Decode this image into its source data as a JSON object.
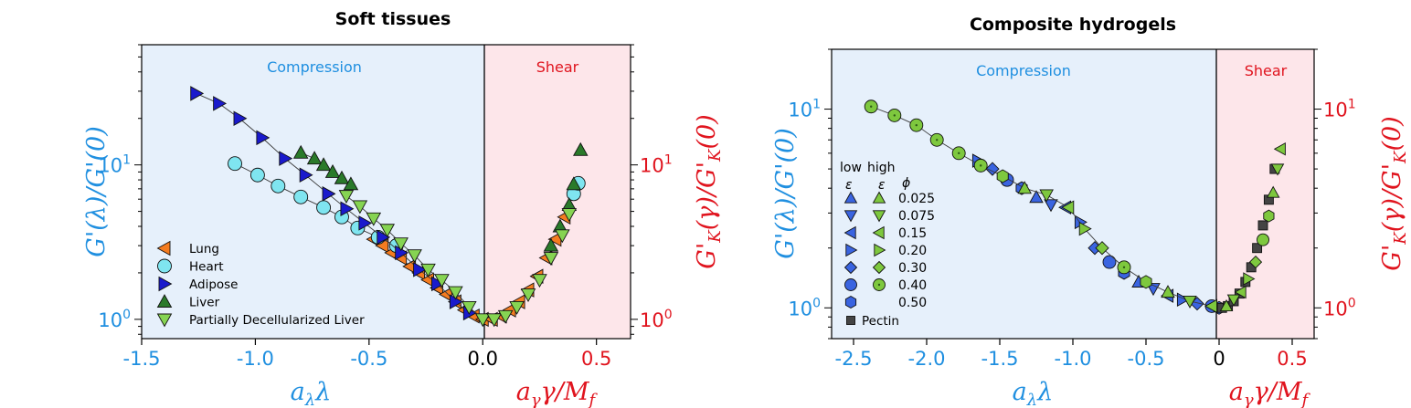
{
  "chart_data": [
    {
      "type": "scatter",
      "title": "Soft tissues",
      "xlabel": "a_λ λ",
      "xlabel_right": "a_γ γ/M_f",
      "ylabel_left": "G'(λ)/G'(0)",
      "ylabel_right": "G'_K(γ)/G'_K(0)",
      "xlim": [
        -1.5,
        0.65
      ],
      "ylim": [
        0.75,
        60
      ],
      "yscale": "log",
      "x_ticks": [
        "-1.5",
        "-1.0",
        "-0.5",
        "0.0",
        "0.5"
      ],
      "y_ticks_left": [
        "10^0",
        "10^1"
      ],
      "y_ticks_right": [
        "10^0",
        "10^1"
      ],
      "regions": [
        {
          "label": "Compression",
          "x": [
            -1.5,
            0.0
          ],
          "color": "#e6f0fb",
          "text_color": "#1f8fe0"
        },
        {
          "label": "Shear",
          "x": [
            0.0,
            0.65
          ],
          "color": "#fde6ea",
          "text_color": "#e0141e"
        }
      ],
      "legend_position": "lower-left",
      "series": [
        {
          "name": "Lung",
          "marker": "triangle-left",
          "color": "#f47c20",
          "x": [
            -0.48,
            -0.44,
            -0.4,
            -0.36,
            -0.32,
            -0.28,
            -0.24,
            -0.2,
            -0.16,
            -0.12,
            -0.08,
            -0.04,
            0.0,
            0.04,
            0.08,
            0.12,
            0.16,
            0.2,
            0.24,
            0.28,
            0.32,
            0.36
          ],
          "y": [
            3.3,
            3.0,
            2.7,
            2.5,
            2.2,
            2.0,
            1.8,
            1.6,
            1.45,
            1.3,
            1.15,
            1.05,
            1.0,
            1.0,
            1.05,
            1.15,
            1.3,
            1.55,
            1.9,
            2.5,
            3.3,
            4.6
          ]
        },
        {
          "name": "Heart",
          "marker": "circle",
          "color": "#7fe5f0",
          "x": [
            -1.09,
            -0.99,
            -0.9,
            -0.8,
            -0.7,
            -0.62,
            -0.55,
            -0.46,
            -0.38,
            0.4,
            0.42
          ],
          "y": [
            10.2,
            8.6,
            7.3,
            6.2,
            5.3,
            4.6,
            3.9,
            3.4,
            3.0,
            6.5,
            7.6
          ]
        },
        {
          "name": "Adipose",
          "marker": "triangle-right",
          "color": "#1a1acc",
          "x": [
            -1.26,
            -1.16,
            -1.07,
            -0.97,
            -0.87,
            -0.78,
            -0.68,
            -0.6,
            -0.52,
            -0.44,
            -0.36,
            -0.28,
            -0.2,
            -0.12,
            -0.06
          ],
          "y": [
            29,
            25,
            20,
            15,
            11,
            8.6,
            6.5,
            5.2,
            4.2,
            3.4,
            2.7,
            2.1,
            1.7,
            1.3,
            1.1
          ]
        },
        {
          "name": "Liver",
          "marker": "triangle-up",
          "color": "#2a7a2a",
          "x": [
            -0.8,
            -0.74,
            -0.7,
            -0.66,
            -0.62,
            -0.58,
            0.3,
            0.34,
            0.38,
            0.4,
            0.43
          ],
          "y": [
            12,
            11,
            10,
            9,
            8.2,
            7.5,
            3.0,
            4.0,
            5.5,
            7.5,
            12.5
          ]
        },
        {
          "name": "Partially Decellularized Liver",
          "marker": "triangle-down",
          "color": "#86d452",
          "x": [
            -0.6,
            -0.54,
            -0.48,
            -0.42,
            -0.36,
            -0.3,
            -0.24,
            -0.18,
            -0.12,
            -0.06,
            0.0,
            0.05,
            0.1,
            0.15,
            0.2,
            0.25,
            0.3,
            0.35,
            0.38
          ],
          "y": [
            6.3,
            5.4,
            4.5,
            3.8,
            3.1,
            2.6,
            2.1,
            1.8,
            1.5,
            1.2,
            1.0,
            1.0,
            1.05,
            1.2,
            1.45,
            1.8,
            2.5,
            3.5,
            4.8
          ]
        }
      ]
    },
    {
      "type": "scatter",
      "title": "Composite hydrogels",
      "xlabel": "a_λ λ",
      "xlabel_right": "a_γ γ/M_f",
      "ylabel_left": "G'(λ)/G'(0)",
      "ylabel_right": "G'_K(γ)/G'_K(0)",
      "xlim": [
        -2.65,
        0.65
      ],
      "ylim": [
        0.7,
        20
      ],
      "yscale": "log",
      "x_ticks": [
        "-2.5",
        "-2.0",
        "-1.5",
        "-1.0",
        "-0.5",
        "0",
        "0.5"
      ],
      "y_ticks_left": [
        "10^0",
        "10^1"
      ],
      "y_ticks_right": [
        "10^0",
        "10^1"
      ],
      "regions": [
        {
          "label": "Compression",
          "x": [
            -2.65,
            0.0
          ],
          "color": "#e6f0fb",
          "text_color": "#1f8fe0"
        },
        {
          "label": "Shear",
          "x": [
            0.0,
            0.65
          ],
          "color": "#fde6ea",
          "text_color": "#e0141e"
        }
      ],
      "legend_position": "lower-left",
      "legend_header": {
        "low": "low",
        "high": "high",
        "eps": "ε",
        "phi": "ϕ"
      },
      "phi_values": [
        "0.025",
        "0.075",
        "0.15",
        "0.20",
        "0.30",
        "0.40",
        "0.50"
      ],
      "pectin_label": "Pectin",
      "series": [
        {
          "name": "low ε",
          "color": "#3a64e0",
          "x": [
            -1.65,
            -1.55,
            -1.45,
            -1.35,
            -1.25,
            -1.15,
            -1.05,
            -0.95,
            -0.85,
            -0.75,
            -0.65,
            -0.55,
            -0.45,
            -0.35,
            -0.25,
            -0.15,
            -0.05,
            0.0
          ],
          "y": [
            5.5,
            5.0,
            4.4,
            4.0,
            3.6,
            3.3,
            3.2,
            2.7,
            2.0,
            1.7,
            1.5,
            1.35,
            1.25,
            1.15,
            1.1,
            1.05,
            1.02,
            1.0
          ]
        },
        {
          "name": "high ε",
          "color": "#7ec83e",
          "x": [
            -2.38,
            -2.22,
            -2.07,
            -1.93,
            -1.78,
            -1.63,
            -1.48,
            -1.33,
            -1.18,
            -1.03,
            -0.92,
            -0.8,
            -0.65,
            -0.5,
            -0.35,
            -0.2,
            -0.05
          ],
          "y": [
            10.3,
            9.3,
            8.3,
            7.0,
            6.0,
            5.2,
            4.6,
            4.0,
            3.7,
            3.2,
            2.5,
            2.0,
            1.6,
            1.35,
            1.2,
            1.08,
            1.02
          ]
        },
        {
          "name": "Pectin",
          "color": "#444444",
          "x": [
            0.02,
            0.06,
            0.1,
            0.14,
            0.18,
            0.22,
            0.26,
            0.3,
            0.34,
            0.38
          ],
          "y": [
            1.0,
            1.02,
            1.08,
            1.18,
            1.35,
            1.6,
            2.0,
            2.6,
            3.5,
            5.0
          ]
        },
        {
          "name": "shear",
          "color": "#7ec83e",
          "x": [
            0.05,
            0.1,
            0.15,
            0.2,
            0.25,
            0.3,
            0.34,
            0.37,
            0.4,
            0.42
          ],
          "y": [
            1.02,
            1.1,
            1.2,
            1.4,
            1.7,
            2.2,
            2.9,
            3.8,
            5.0,
            6.3
          ]
        }
      ]
    }
  ]
}
